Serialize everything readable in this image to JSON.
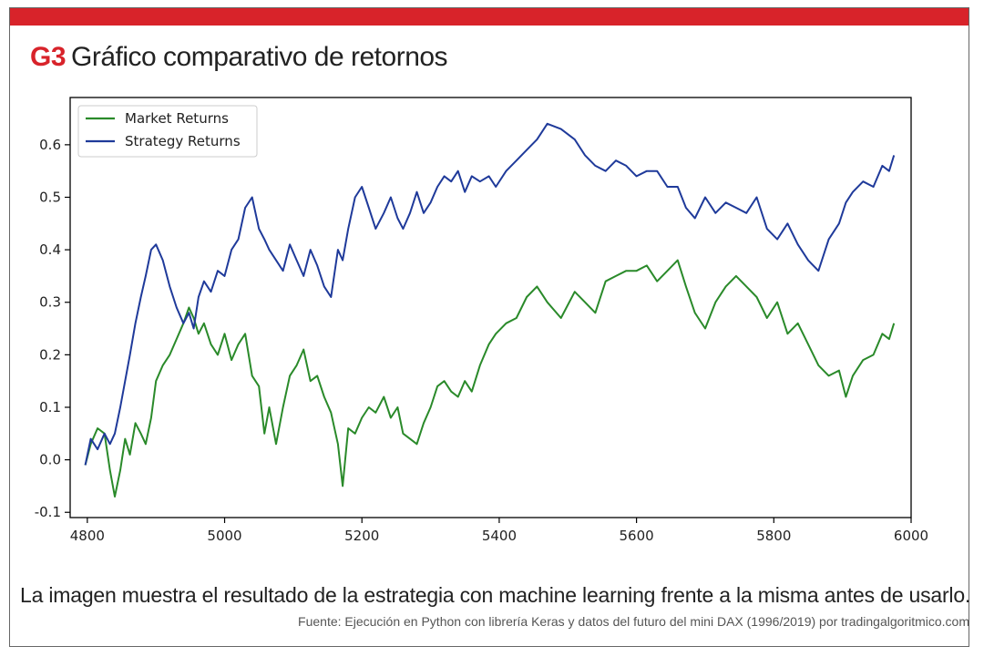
{
  "header": {
    "code": "G3",
    "title": "Gráfico comparativo de retornos"
  },
  "caption": "La imagen muestra el resultado de la estrategia con machine learning frente a la misma antes de usarlo.",
  "source": "Fuente: Ejecución en Python con librería Keras y datos del futuro del mini DAX (1996/2019) por tradingalgoritmico.com",
  "colors": {
    "accent": "#d8232a",
    "market": "#2a8a2a",
    "strategy": "#1f3a9a"
  },
  "chart_data": {
    "type": "line",
    "xlim": [
      4775,
      6000
    ],
    "ylim": [
      -0.11,
      0.69
    ],
    "x_ticks": [
      4800,
      5000,
      5200,
      5400,
      5600,
      5800,
      6000
    ],
    "y_ticks": [
      -0.1,
      0.0,
      0.1,
      0.2,
      0.3,
      0.4,
      0.5,
      0.6
    ],
    "x_tick_labels": [
      "4800",
      "5000",
      "5200",
      "5400",
      "5600",
      "5800",
      "6000"
    ],
    "y_tick_labels": [
      "-0.1",
      "0.0",
      "0.1",
      "0.2",
      "0.3",
      "0.4",
      "0.5",
      "0.6"
    ],
    "legend_position": "top-left",
    "grid": false,
    "series": [
      {
        "name": "Market Returns",
        "color": "#2a8a2a",
        "x": [
          4797,
          4805,
          4815,
          4825,
          4833,
          4840,
          4848,
          4855,
          4862,
          4870,
          4878,
          4885,
          4893,
          4900,
          4910,
          4920,
          4930,
          4940,
          4948,
          4955,
          4962,
          4970,
          4980,
          4990,
          5000,
          5010,
          5020,
          5030,
          5040,
          5050,
          5058,
          5065,
          5075,
          5085,
          5095,
          5105,
          5115,
          5125,
          5135,
          5145,
          5155,
          5165,
          5172,
          5180,
          5190,
          5200,
          5210,
          5220,
          5232,
          5242,
          5252,
          5260,
          5270,
          5280,
          5290,
          5300,
          5310,
          5320,
          5330,
          5340,
          5350,
          5360,
          5372,
          5385,
          5395,
          5410,
          5425,
          5440,
          5455,
          5470,
          5490,
          5510,
          5525,
          5540,
          5555,
          5570,
          5585,
          5600,
          5615,
          5630,
          5645,
          5660,
          5672,
          5685,
          5700,
          5715,
          5730,
          5745,
          5760,
          5775,
          5790,
          5805,
          5820,
          5835,
          5850,
          5865,
          5880,
          5895,
          5905,
          5915,
          5930,
          5945,
          5958,
          5968,
          5975
        ],
        "y": [
          -0.01,
          0.03,
          0.06,
          0.05,
          -0.02,
          -0.07,
          -0.02,
          0.04,
          0.01,
          0.07,
          0.05,
          0.03,
          0.08,
          0.15,
          0.18,
          0.2,
          0.23,
          0.26,
          0.29,
          0.27,
          0.24,
          0.26,
          0.22,
          0.2,
          0.24,
          0.19,
          0.22,
          0.24,
          0.16,
          0.14,
          0.05,
          0.1,
          0.03,
          0.1,
          0.16,
          0.18,
          0.21,
          0.15,
          0.16,
          0.12,
          0.09,
          0.03,
          -0.05,
          0.06,
          0.05,
          0.08,
          0.1,
          0.09,
          0.12,
          0.08,
          0.1,
          0.05,
          0.04,
          0.03,
          0.07,
          0.1,
          0.14,
          0.15,
          0.13,
          0.12,
          0.15,
          0.13,
          0.18,
          0.22,
          0.24,
          0.26,
          0.27,
          0.31,
          0.33,
          0.3,
          0.27,
          0.32,
          0.3,
          0.28,
          0.34,
          0.35,
          0.36,
          0.36,
          0.37,
          0.34,
          0.36,
          0.38,
          0.33,
          0.28,
          0.25,
          0.3,
          0.33,
          0.35,
          0.33,
          0.31,
          0.27,
          0.3,
          0.24,
          0.26,
          0.22,
          0.18,
          0.16,
          0.17,
          0.12,
          0.16,
          0.19,
          0.2,
          0.24,
          0.23,
          0.26
        ]
      },
      {
        "name": "Strategy Returns",
        "color": "#1f3a9a",
        "x": [
          4797,
          4805,
          4815,
          4825,
          4833,
          4840,
          4848,
          4855,
          4862,
          4870,
          4878,
          4885,
          4893,
          4900,
          4910,
          4920,
          4930,
          4940,
          4948,
          4955,
          4962,
          4970,
          4980,
          4990,
          5000,
          5010,
          5020,
          5030,
          5040,
          5050,
          5058,
          5065,
          5075,
          5085,
          5095,
          5105,
          5115,
          5125,
          5135,
          5145,
          5155,
          5165,
          5172,
          5180,
          5190,
          5200,
          5210,
          5220,
          5232,
          5242,
          5252,
          5260,
          5270,
          5280,
          5290,
          5300,
          5310,
          5320,
          5330,
          5340,
          5350,
          5360,
          5372,
          5385,
          5395,
          5410,
          5425,
          5440,
          5455,
          5470,
          5490,
          5510,
          5525,
          5540,
          5555,
          5570,
          5585,
          5600,
          5615,
          5630,
          5645,
          5660,
          5672,
          5685,
          5700,
          5715,
          5730,
          5745,
          5760,
          5775,
          5790,
          5805,
          5820,
          5835,
          5850,
          5865,
          5880,
          5895,
          5905,
          5915,
          5930,
          5945,
          5958,
          5968,
          5975
        ],
        "y": [
          -0.01,
          0.04,
          0.02,
          0.05,
          0.03,
          0.05,
          0.1,
          0.15,
          0.2,
          0.26,
          0.31,
          0.35,
          0.4,
          0.41,
          0.38,
          0.33,
          0.29,
          0.26,
          0.28,
          0.25,
          0.31,
          0.34,
          0.32,
          0.36,
          0.35,
          0.4,
          0.42,
          0.48,
          0.5,
          0.44,
          0.42,
          0.4,
          0.38,
          0.36,
          0.41,
          0.38,
          0.35,
          0.4,
          0.37,
          0.33,
          0.31,
          0.4,
          0.38,
          0.44,
          0.5,
          0.52,
          0.48,
          0.44,
          0.47,
          0.5,
          0.46,
          0.44,
          0.47,
          0.51,
          0.47,
          0.49,
          0.52,
          0.54,
          0.53,
          0.55,
          0.51,
          0.54,
          0.53,
          0.54,
          0.52,
          0.55,
          0.57,
          0.59,
          0.61,
          0.64,
          0.63,
          0.61,
          0.58,
          0.56,
          0.55,
          0.57,
          0.56,
          0.54,
          0.55,
          0.55,
          0.52,
          0.52,
          0.48,
          0.46,
          0.5,
          0.47,
          0.49,
          0.48,
          0.47,
          0.5,
          0.44,
          0.42,
          0.45,
          0.41,
          0.38,
          0.36,
          0.42,
          0.45,
          0.49,
          0.51,
          0.53,
          0.52,
          0.56,
          0.55,
          0.58
        ]
      }
    ]
  }
}
